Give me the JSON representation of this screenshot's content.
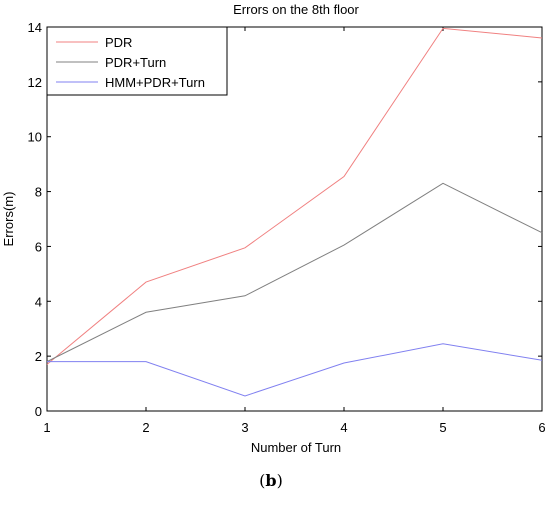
{
  "chart_data": {
    "type": "line",
    "title": "Errors on the 8th floor",
    "xlabel": "Number of Turn",
    "ylabel": "Errors(m)",
    "x": [
      1,
      2,
      3,
      4,
      5,
      6
    ],
    "xlim": [
      1,
      6
    ],
    "ylim": [
      0,
      14
    ],
    "xticks": [
      1,
      2,
      3,
      4,
      5,
      6
    ],
    "yticks": [
      0,
      2,
      4,
      6,
      8,
      10,
      12,
      14
    ],
    "grid": false,
    "legend_position": "top-left",
    "series": [
      {
        "name": "PDR",
        "color": "#f08080",
        "values": [
          1.7,
          4.7,
          5.95,
          8.55,
          13.95,
          13.6
        ]
      },
      {
        "name": "PDR+Turn",
        "color": "#808080",
        "values": [
          1.8,
          3.6,
          4.2,
          6.05,
          8.3,
          6.5
        ]
      },
      {
        "name": "HMM+PDR+Turn",
        "color": "#8080f0",
        "values": [
          1.8,
          1.8,
          0.55,
          1.75,
          2.45,
          1.85
        ]
      }
    ]
  },
  "caption": {
    "open": "(",
    "letter": "b",
    "close": ")"
  }
}
